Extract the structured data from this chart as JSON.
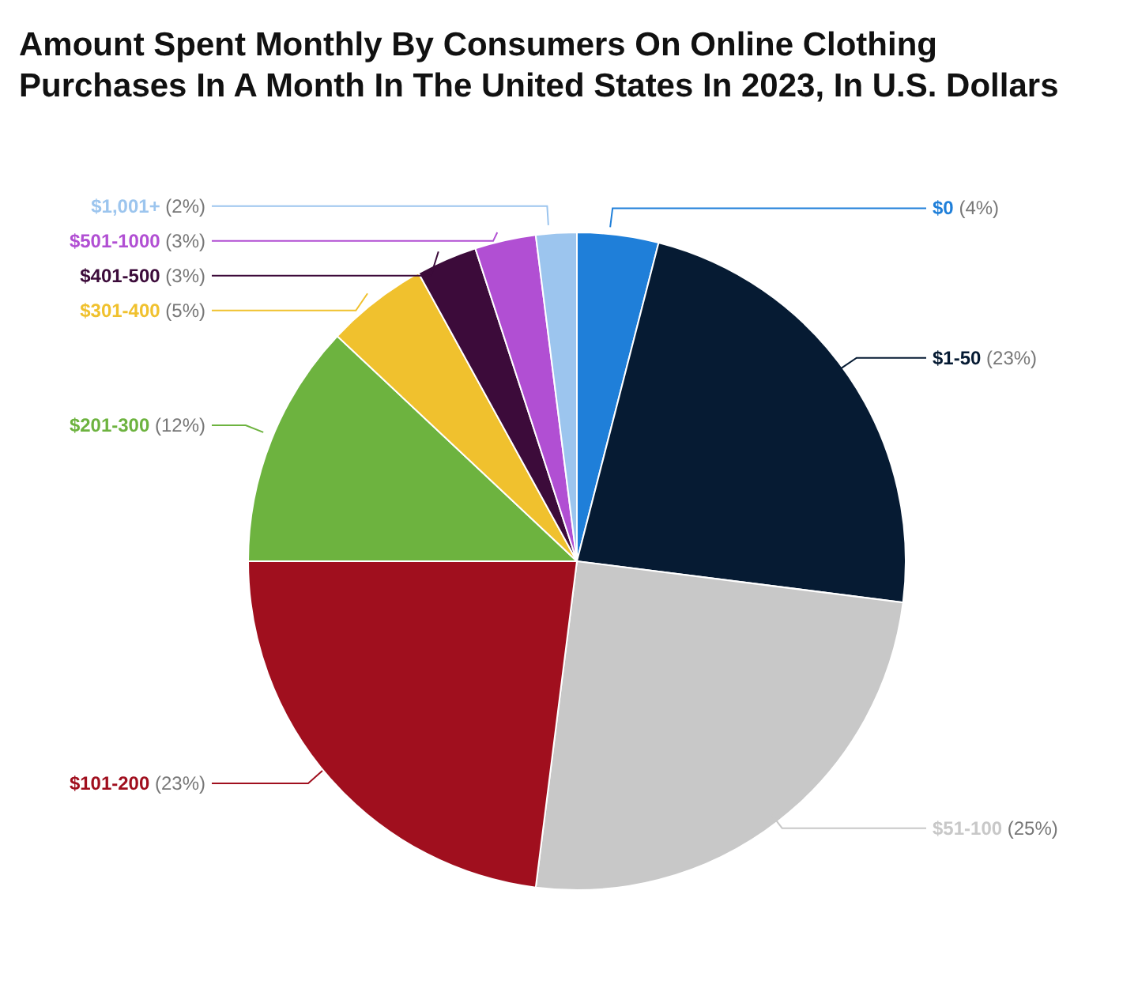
{
  "chart_data": {
    "type": "pie",
    "title": "Amount Spent Monthly By Consumers On Online Clothing Purchases In A Month In The United States In 2023, In U.S. Dollars",
    "categories": [
      "$0",
      "$1-50",
      "$51-100",
      "$101-200",
      "$201-300",
      "$301-400",
      "$401-500",
      "$501-1000",
      "$1,001+"
    ],
    "values": [
      4,
      23,
      25,
      23,
      12,
      5,
      3,
      3,
      2
    ],
    "value_labels": [
      "(4%)",
      "(23%)",
      "(25%)",
      "(23%)",
      "(12%)",
      "(5%)",
      "(3%)",
      "(3%)",
      "(2%)"
    ],
    "colors": [
      "#1f7fd9",
      "#061b33",
      "#c8c8c8",
      "#a00f1e",
      "#6db33f",
      "#f0c12e",
      "#3c0b3a",
      "#b14fd3",
      "#9cc5ee"
    ]
  }
}
